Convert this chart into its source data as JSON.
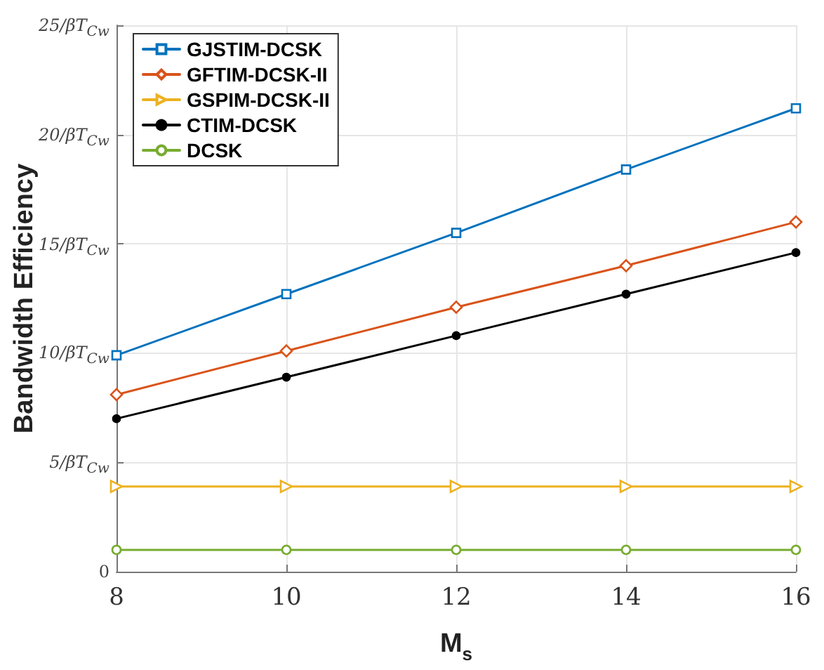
{
  "chart_data": {
    "type": "line",
    "xlabel": "M$_{s}$",
    "ylabel": "Bandwidth Efficiency",
    "x": [
      8,
      10,
      12,
      14,
      16
    ],
    "series": [
      {
        "name": "GJSTIM-DCSK",
        "color": "#0072bd",
        "marker": "square",
        "values": [
          9.9,
          12.7,
          15.5,
          18.4,
          21.2
        ]
      },
      {
        "name": "GFTIM-DCSK-II",
        "color": "#d95319",
        "marker": "diamond",
        "values": [
          8.1,
          10.1,
          12.1,
          14,
          16
        ]
      },
      {
        "name": "GSPIM-DCSK-II",
        "color": "#edb120",
        "marker": "triangle",
        "values": [
          3.9,
          3.9,
          3.9,
          3.9,
          3.9
        ]
      },
      {
        "name": "CTIM-DCSK",
        "color": "#000000",
        "marker": "circle",
        "values": [
          7,
          8.9,
          10.8,
          12.7,
          14.6
        ]
      },
      {
        "name": "DCSK",
        "color": "#77ac30",
        "marker": "circle",
        "values": [
          1,
          1,
          1,
          1,
          1
        ]
      }
    ],
    "xlim": [
      8,
      16
    ],
    "xticks": [
      8,
      10,
      12,
      14,
      16
    ],
    "ylim": [
      0,
      25
    ],
    "yticks": [
      0,
      {
        "value": 5,
        "label": "5/βT$_{Cw}$"
      },
      {
        "value": 10,
        "label": "10/βT$_{Cw}$"
      },
      {
        "value": 15,
        "label": "15/βT$_{Cw}$"
      },
      {
        "value": 20,
        "label": "20/βT$_{Cw}$"
      },
      {
        "value": 25,
        "label": "25/βT$_{Cw}$"
      }
    ],
    "grid": true,
    "legend": "top left",
    "line_style": "solid"
  }
}
